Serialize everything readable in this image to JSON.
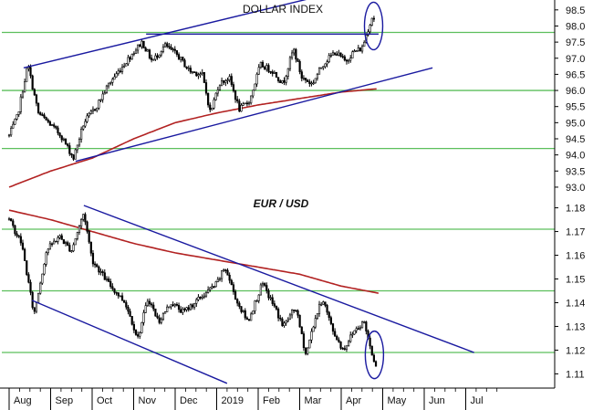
{
  "colors": {
    "candle": "#000000",
    "ma": "#b22222",
    "trend": "#1a1aa0",
    "level": "#5cbf5c",
    "circle": "#1a1aa0"
  },
  "chart_data": [
    {
      "type": "candlestick",
      "title": "DOLLAR INDEX",
      "yticks": [
        "98.5",
        "98.0",
        "97.5",
        "97.0",
        "96.5",
        "96.0",
        "95.5",
        "95.0",
        "94.5",
        "94.0",
        "93.5",
        "93.0"
      ],
      "ylim": [
        92.8,
        98.75
      ],
      "horizontal_levels": [
        97.8,
        96.0,
        94.2
      ],
      "x_months": [
        "Aug",
        "Sep",
        "Oct",
        "Nov",
        "Dec",
        "2019",
        "Feb",
        "Mar",
        "Apr",
        "May",
        "Jun",
        "Jul"
      ],
      "x_month_index": [
        0,
        1,
        2,
        3,
        4,
        5,
        6,
        7,
        8,
        9,
        10,
        11
      ],
      "price_path": [
        [
          0,
          94.6
        ],
        [
          0.2,
          95.2
        ],
        [
          0.45,
          96.8
        ],
        [
          0.7,
          95.3
        ],
        [
          0.95,
          95.0
        ],
        [
          1.25,
          94.6
        ],
        [
          1.55,
          93.9
        ],
        [
          1.8,
          95.0
        ],
        [
          2.1,
          95.5
        ],
        [
          2.4,
          96.2
        ],
        [
          2.7,
          96.7
        ],
        [
          3.0,
          97.2
        ],
        [
          3.2,
          97.5
        ],
        [
          3.45,
          96.9
        ],
        [
          3.75,
          97.4
        ],
        [
          4.05,
          97.1
        ],
        [
          4.35,
          96.6
        ],
        [
          4.65,
          96.5
        ],
        [
          4.85,
          95.3
        ],
        [
          5.05,
          96.2
        ],
        [
          5.3,
          96.4
        ],
        [
          5.55,
          95.4
        ],
        [
          5.8,
          95.7
        ],
        [
          6.05,
          96.8
        ],
        [
          6.35,
          96.6
        ],
        [
          6.6,
          96.2
        ],
        [
          6.85,
          97.3
        ],
        [
          7.05,
          96.4
        ],
        [
          7.3,
          96.2
        ],
        [
          7.55,
          96.8
        ],
        [
          7.85,
          97.2
        ],
        [
          8.1,
          96.9
        ],
        [
          8.3,
          97.2
        ],
        [
          8.5,
          97.3
        ],
        [
          8.62,
          97.8
        ],
        [
          8.75,
          98.3
        ],
        [
          8.82,
          98.2
        ]
      ],
      "moving_average": [
        [
          0,
          93.0
        ],
        [
          1,
          93.5
        ],
        [
          2,
          93.9
        ],
        [
          3,
          94.5
        ],
        [
          4,
          95.0
        ],
        [
          5,
          95.3
        ],
        [
          6,
          95.55
        ],
        [
          7,
          95.75
        ],
        [
          8,
          95.95
        ],
        [
          8.85,
          96.05
        ]
      ],
      "trendlines": [
        {
          "from": [
            0.35,
            96.7
          ],
          "to": [
            9.0,
            99.4
          ]
        },
        {
          "from": [
            1.6,
            93.8
          ],
          "to": [
            10.2,
            96.7
          ]
        },
        {
          "from": [
            3.3,
            97.75
          ],
          "to": [
            8.9,
            97.75
          ]
        }
      ],
      "highlight": {
        "x": 8.78,
        "y": 98.0
      }
    },
    {
      "type": "candlestick",
      "title": "EUR / USD",
      "yticks": [
        "1.18",
        "1.17",
        "1.16",
        "1.15",
        "1.14",
        "1.13",
        "1.12",
        "1.11"
      ],
      "ylim": [
        1.104,
        1.186
      ],
      "horizontal_levels": [
        1.171,
        1.145,
        1.119
      ],
      "x_months": [
        "Aug",
        "Sep",
        "Oct",
        "Nov",
        "Dec",
        "2019",
        "Feb",
        "Mar",
        "Apr",
        "May",
        "Jun",
        "Jul"
      ],
      "x_month_index": [
        0,
        1,
        2,
        3,
        4,
        5,
        6,
        7,
        8,
        9,
        10,
        11
      ],
      "price_path": [
        [
          0,
          1.175
        ],
        [
          0.3,
          1.165
        ],
        [
          0.6,
          1.135
        ],
        [
          0.9,
          1.162
        ],
        [
          1.2,
          1.168
        ],
        [
          1.5,
          1.162
        ],
        [
          1.8,
          1.178
        ],
        [
          2.0,
          1.158
        ],
        [
          2.4,
          1.148
        ],
        [
          2.8,
          1.14
        ],
        [
          3.1,
          1.125
        ],
        [
          3.35,
          1.142
        ],
        [
          3.6,
          1.132
        ],
        [
          3.9,
          1.14
        ],
        [
          4.2,
          1.136
        ],
        [
          4.6,
          1.142
        ],
        [
          5.0,
          1.148
        ],
        [
          5.2,
          1.155
        ],
        [
          5.5,
          1.14
        ],
        [
          5.75,
          1.132
        ],
        [
          6.1,
          1.148
        ],
        [
          6.4,
          1.138
        ],
        [
          6.6,
          1.13
        ],
        [
          6.9,
          1.138
        ],
        [
          7.15,
          1.118
        ],
        [
          7.35,
          1.132
        ],
        [
          7.55,
          1.142
        ],
        [
          7.8,
          1.128
        ],
        [
          8.05,
          1.12
        ],
        [
          8.3,
          1.128
        ],
        [
          8.55,
          1.132
        ],
        [
          8.75,
          1.118
        ],
        [
          8.88,
          1.112
        ]
      ],
      "moving_average": [
        [
          0,
          1.179
        ],
        [
          1,
          1.175
        ],
        [
          2,
          1.17
        ],
        [
          3,
          1.165
        ],
        [
          4,
          1.161
        ],
        [
          5,
          1.158
        ],
        [
          6,
          1.155
        ],
        [
          7,
          1.152
        ],
        [
          8,
          1.147
        ],
        [
          8.9,
          1.144
        ]
      ],
      "trendlines": [
        {
          "from": [
            1.8,
            1.181
          ],
          "to": [
            11.2,
            1.119
          ]
        },
        {
          "from": [
            0.55,
            1.141
          ],
          "to": [
            5.25,
            1.106
          ]
        }
      ],
      "highlight": {
        "x": 8.8,
        "y": 1.118
      }
    }
  ]
}
